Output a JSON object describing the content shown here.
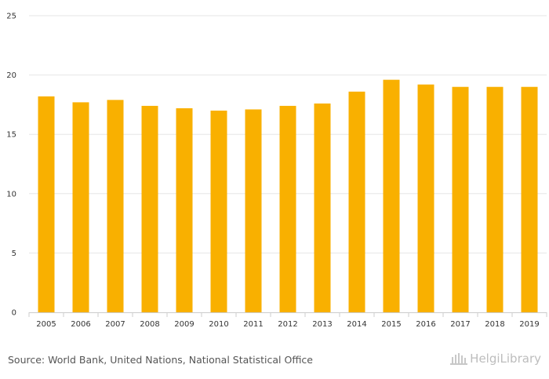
{
  "chart_data": {
    "type": "bar",
    "categories": [
      "2005",
      "2006",
      "2007",
      "2008",
      "2009",
      "2010",
      "2011",
      "2012",
      "2013",
      "2014",
      "2015",
      "2016",
      "2017",
      "2018",
      "2019"
    ],
    "values": [
      18.2,
      17.7,
      17.9,
      17.4,
      17.2,
      17.0,
      17.1,
      17.4,
      17.6,
      18.6,
      19.6,
      19.2,
      19.0,
      19.0,
      19.0
    ],
    "title": "",
    "xlabel": "",
    "ylabel": "",
    "ylim": [
      0,
      25
    ],
    "yticks": [
      0,
      5,
      10,
      15,
      20,
      25
    ],
    "grid": true,
    "bar_color": "#f9b000",
    "grid_color": "#e6e6e6"
  },
  "footer": {
    "source": "Source: World Bank, United Nations, National Statistical Office",
    "brand": "HelgiLibrary",
    "brand_icon": "library-building-icon"
  }
}
